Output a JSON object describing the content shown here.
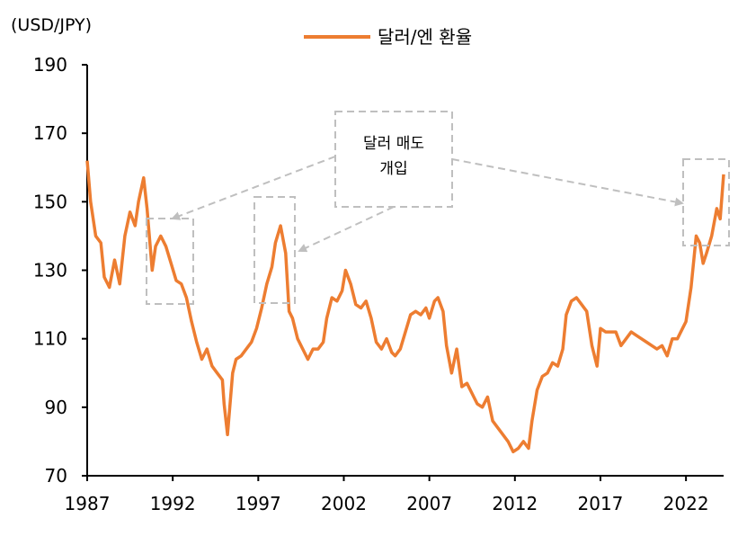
{
  "chart_data": {
    "type": "line",
    "ylabel": "(USD/JPY)",
    "ylim": [
      70,
      190
    ],
    "yticks": [
      70,
      90,
      110,
      130,
      150,
      170,
      190
    ],
    "xlim": [
      1987,
      2024.2
    ],
    "xticks": [
      1987,
      1992,
      1997,
      2002,
      2007,
      2012,
      2017,
      2022
    ],
    "grid": false,
    "legend_position": "top-center",
    "series": [
      {
        "name": "달러/엔 환율",
        "color": "#ED7D31",
        "x": [
          1987.0,
          1987.2,
          1987.5,
          1987.8,
          1988.0,
          1988.3,
          1988.6,
          1988.9,
          1989.2,
          1989.5,
          1989.8,
          1990.0,
          1990.3,
          1990.5,
          1990.8,
          1991.0,
          1991.3,
          1991.6,
          1991.9,
          1992.2,
          1992.5,
          1992.8,
          1993.1,
          1993.4,
          1993.7,
          1994.0,
          1994.3,
          1994.6,
          1994.9,
          1995.0,
          1995.2,
          1995.3,
          1995.5,
          1995.7,
          1996.0,
          1996.3,
          1996.6,
          1996.9,
          1997.2,
          1997.5,
          1997.8,
          1998.0,
          1998.3,
          1998.6,
          1998.8,
          1999.0,
          1999.3,
          1999.6,
          1999.9,
          2000.2,
          2000.5,
          2000.8,
          2001.0,
          2001.3,
          2001.6,
          2001.9,
          2002.1,
          2002.4,
          2002.7,
          2003.0,
          2003.3,
          2003.6,
          2003.9,
          2004.2,
          2004.5,
          2004.8,
          2005.0,
          2005.3,
          2005.6,
          2005.9,
          2006.2,
          2006.5,
          2006.8,
          2007.0,
          2007.3,
          2007.5,
          2007.8,
          2008.0,
          2008.3,
          2008.6,
          2008.9,
          2009.2,
          2009.5,
          2009.8,
          2010.1,
          2010.4,
          2010.7,
          2011.0,
          2011.3,
          2011.6,
          2011.9,
          2012.2,
          2012.5,
          2012.8,
          2013.0,
          2013.3,
          2013.6,
          2013.9,
          2014.2,
          2014.5,
          2014.8,
          2015.0,
          2015.3,
          2015.6,
          2015.9,
          2016.2,
          2016.5,
          2016.8,
          2017.0,
          2017.3,
          2017.6,
          2017.9,
          2018.2,
          2018.5,
          2018.8,
          2019.1,
          2019.4,
          2019.7,
          2020.0,
          2020.3,
          2020.6,
          2020.9,
          2021.2,
          2021.5,
          2021.8,
          2022.0,
          2022.3,
          2022.6,
          2022.8,
          2023.0,
          2023.2,
          2023.5,
          2023.8,
          2024.0,
          2024.2
        ],
        "values": [
          162,
          150,
          140,
          138,
          128,
          125,
          133,
          126,
          140,
          147,
          143,
          150,
          157,
          148,
          130,
          137,
          140,
          137,
          132,
          127,
          126,
          122,
          115,
          109,
          104,
          107,
          102,
          100,
          98,
          91,
          82,
          88,
          100,
          104,
          105,
          107,
          109,
          113,
          119,
          126,
          131,
          138,
          143,
          135,
          118,
          116,
          110,
          107,
          104,
          107,
          107,
          109,
          116,
          122,
          121,
          124,
          130,
          126,
          120,
          119,
          121,
          116,
          109,
          107,
          110,
          106,
          105,
          107,
          112,
          117,
          118,
          117,
          119,
          116,
          121,
          122,
          118,
          108,
          100,
          107,
          96,
          97,
          94,
          91,
          90,
          93,
          86,
          84,
          82,
          80,
          77,
          78,
          80,
          78,
          86,
          95,
          99,
          100,
          103,
          102,
          107,
          117,
          121,
          122,
          120,
          118,
          108,
          102,
          113,
          112,
          112,
          112,
          108,
          110,
          112,
          111,
          110,
          109,
          108,
          107,
          108,
          105,
          110,
          110,
          113,
          115,
          125,
          140,
          138,
          132,
          135,
          140,
          148,
          145,
          158
        ]
      }
    ],
    "annotations": [
      {
        "label_lines": [
          "달러 매도",
          "개입"
        ]
      }
    ]
  }
}
